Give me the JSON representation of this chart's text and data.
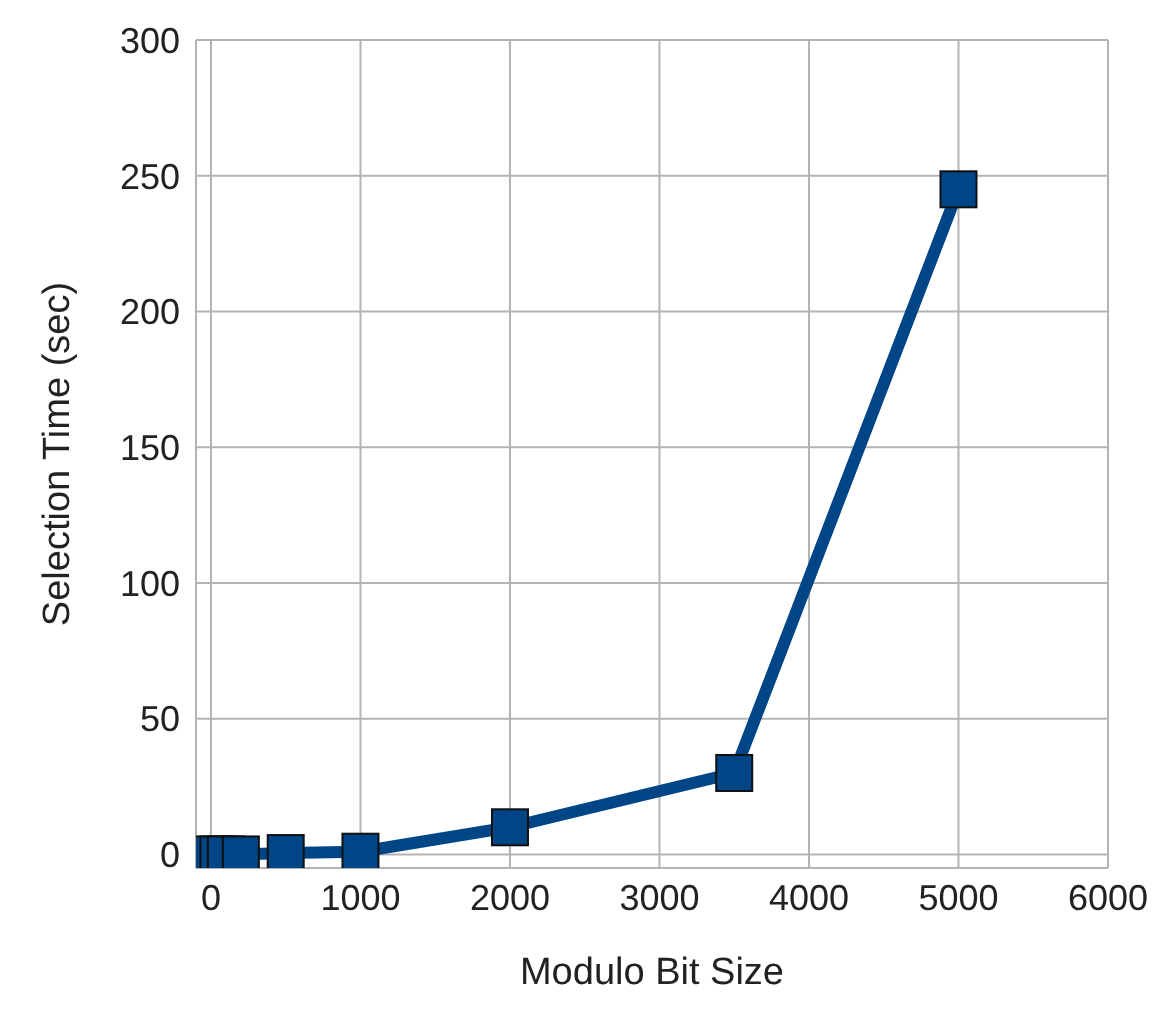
{
  "chart_data": {
    "type": "line",
    "xlabel": "Modulo Bit Size",
    "ylabel": "Selection Time (sec)",
    "x": [
      10,
      50,
      100,
      200,
      500,
      1000,
      2000,
      3500,
      5000
    ],
    "series": [
      {
        "color": "#004586",
        "values": [
          0,
          0,
          0,
          0,
          0.5,
          1,
          10,
          30,
          245
        ]
      }
    ],
    "xlim": [
      -100,
      6000
    ],
    "xticks": [
      0,
      1000,
      2000,
      3000,
      4000,
      5000,
      6000
    ],
    "ylim": [
      -5,
      300
    ],
    "yticks": [
      0,
      50,
      100,
      150,
      200,
      250,
      300
    ],
    "grid": true,
    "marker": "square",
    "line_style": "solid"
  }
}
